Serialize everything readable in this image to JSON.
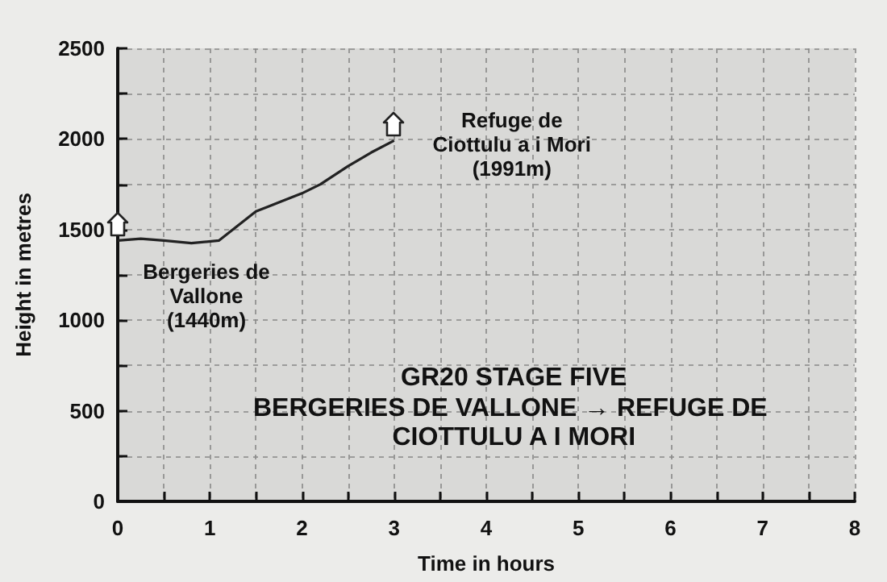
{
  "chart_data": {
    "type": "line",
    "title": "GR20 STAGE FIVE",
    "subtitle": "BERGERIES DE VALLONE → REFUGE DE CIOTTULU A I MORI",
    "xlabel": "Time in hours",
    "ylabel": "Height in metres",
    "x": [
      0,
      0.25,
      0.5,
      0.8,
      1.1,
      1.25,
      1.5,
      1.75,
      2.0,
      2.2,
      2.5,
      2.75,
      3.0
    ],
    "series": [
      {
        "color": "#222222",
        "values": [
          1440,
          1450,
          1440,
          1425,
          1440,
          1500,
          1600,
          1650,
          1700,
          1750,
          1850,
          1925,
          1991
        ]
      }
    ],
    "xlim": [
      0,
      8
    ],
    "ylim": [
      0,
      2500
    ],
    "xticks": [
      0,
      {
        "value": 0.5,
        "label": null
      },
      1,
      {
        "value": 1.5,
        "label": null
      },
      2,
      {
        "value": 2.5,
        "label": null
      },
      3,
      {
        "value": 3.5,
        "label": null
      },
      4,
      {
        "value": 4.5,
        "label": null
      },
      5,
      {
        "value": 5.5,
        "label": null
      },
      6,
      {
        "value": 6.5,
        "label": null
      },
      7,
      {
        "value": 7.5,
        "label": null
      },
      8
    ],
    "yticks": [
      0,
      {
        "value": 250,
        "label": null
      },
      500,
      {
        "value": 750,
        "label": null
      },
      1000,
      {
        "value": 1250,
        "label": null
      },
      1500,
      {
        "value": 1750,
        "label": null
      },
      2000,
      {
        "value": 2250,
        "label": null
      },
      2500
    ],
    "grid": true,
    "marker": "none",
    "line_style": "solid",
    "annotations": [
      {
        "text": "Bergeries de\nVallone\n(1440m)",
        "x": 0,
        "y": 1440
      },
      {
        "text": "Refuge de\nCiottulu a i Mori\n(1991m)",
        "x": 3,
        "y": 1991
      }
    ]
  }
}
